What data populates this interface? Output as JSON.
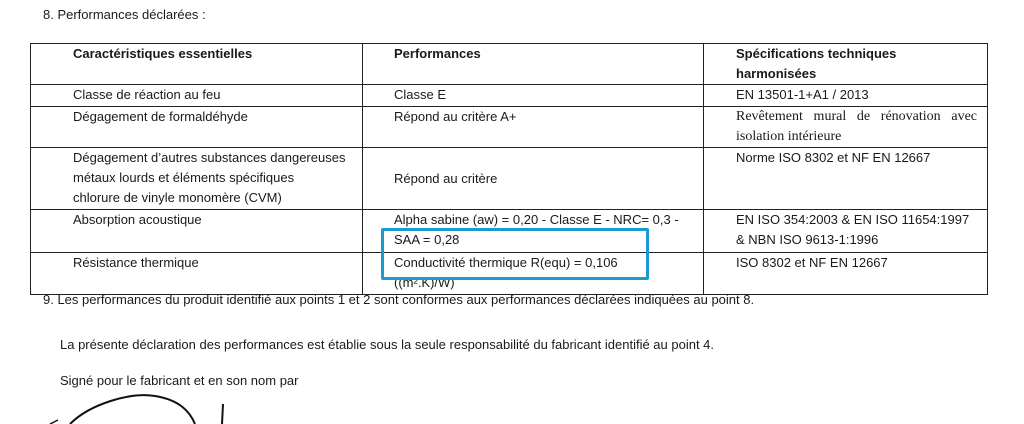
{
  "section8_title": "8. Performances déclarées :",
  "table": {
    "headers": [
      "Caractéristiques essentielles",
      "Performances",
      "Spécifications techniques harmonisées"
    ],
    "rows": [
      {
        "characteristic": [
          "Classe de réaction au feu"
        ],
        "performance": [
          "Classe E"
        ],
        "specification": [
          "EN 13501-1+A1 / 2013"
        ]
      },
      {
        "characteristic": [
          "Dégagement de formaldéhyde"
        ],
        "performance": [
          "Répond au critère A+"
        ],
        "specification": [
          "Revêtement mural de rénovation avec isolation intérieure"
        ]
      },
      {
        "characteristic": [
          "Dégagement d’autres substances dangereuses",
          "métaux lourds et éléments spécifiques",
          "chlorure de vinyle monomère (CVM)"
        ],
        "performance": [
          "Répond au critère"
        ],
        "specification": [
          "Norme ISO 8302 et NF EN 12667"
        ]
      },
      {
        "characteristic": [
          "Absorption acoustique"
        ],
        "performance": [
          "Alpha sabine (aw) = 0,20 - Classe E - NRC= 0,3 -",
          "SAA = 0,28"
        ],
        "specification": [
          "EN ISO  354:2003 & EN ISO 11654:1997",
          "& NBN ISO 9613-1:1996"
        ]
      },
      {
        "characteristic": [
          "Résistance thermique"
        ],
        "performance": [
          "Conductivité thermique R(equ) = 0,106",
          "((m².K)/W)"
        ],
        "specification": [
          "ISO 8302 et NF EN 12667"
        ]
      }
    ]
  },
  "highlight_color": "#1a9ad0",
  "section9_text": "9. Les performances du produit identifié aux points 1 et 2 sont conformes aux performances déclarées indiquées au point 8.",
  "declaration_text": "La présente déclaration des performances est établie sous la seule responsabilité du fabricant identifié au point 4.",
  "signed_text": "Signé pour le fabricant et en son nom par"
}
